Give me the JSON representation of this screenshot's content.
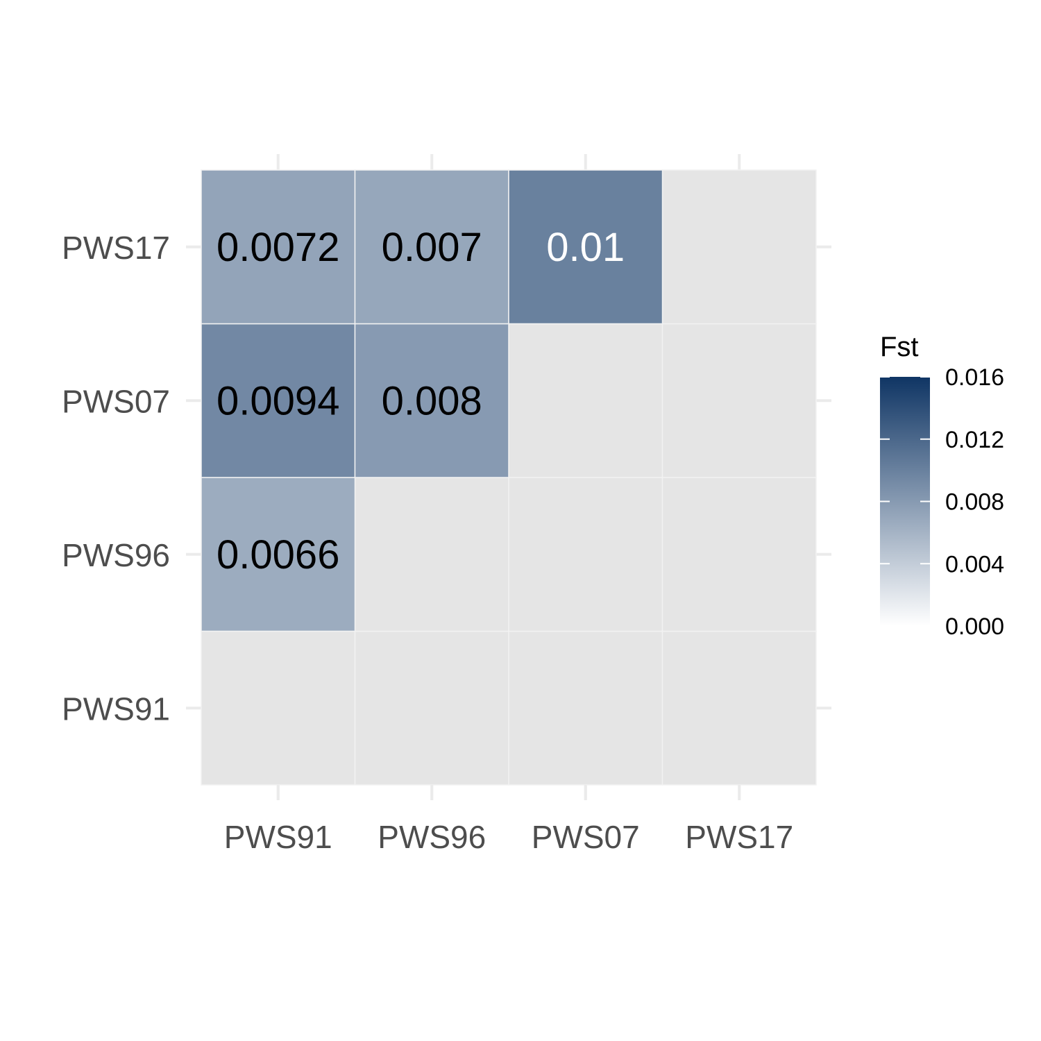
{
  "chart_data": {
    "type": "heatmap",
    "title": "",
    "xlabel": "",
    "ylabel": "",
    "x_categories": [
      "PWS91",
      "PWS96",
      "PWS07",
      "PWS17"
    ],
    "y_categories": [
      "PWS91",
      "PWS96",
      "PWS07",
      "PWS17"
    ],
    "cells": [
      {
        "x": "PWS91",
        "y": "PWS96",
        "value": 0.0066,
        "label": "0.0066"
      },
      {
        "x": "PWS91",
        "y": "PWS07",
        "value": 0.0094,
        "label": "0.0094"
      },
      {
        "x": "PWS96",
        "y": "PWS07",
        "value": 0.008,
        "label": "0.008"
      },
      {
        "x": "PWS91",
        "y": "PWS17",
        "value": 0.0072,
        "label": "0.0072"
      },
      {
        "x": "PWS96",
        "y": "PWS17",
        "value": 0.007,
        "label": "0.007"
      },
      {
        "x": "PWS07",
        "y": "PWS17",
        "value": 0.01,
        "label": "0.01"
      }
    ],
    "legend": {
      "title": "Fst",
      "placement": "right",
      "range": [
        0,
        0.016
      ],
      "ticks": [
        "0.000",
        "0.004",
        "0.008",
        "0.012",
        "0.016"
      ],
      "tick_values": [
        0,
        0.004,
        0.008,
        0.012,
        0.016
      ]
    },
    "colors": {
      "low": "#ffffff",
      "high": "#0f3564",
      "panel_background": "#e5e5e5",
      "grid": "#ebebeb"
    },
    "grid": true
  }
}
